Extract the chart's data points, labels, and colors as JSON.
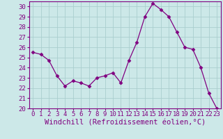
{
  "x": [
    0,
    1,
    2,
    3,
    4,
    5,
    6,
    7,
    8,
    9,
    10,
    11,
    12,
    13,
    14,
    15,
    16,
    17,
    18,
    19,
    20,
    21,
    22,
    23
  ],
  "y": [
    25.5,
    25.3,
    24.7,
    23.2,
    22.2,
    22.7,
    22.5,
    22.2,
    23.0,
    23.2,
    23.5,
    22.5,
    24.7,
    26.5,
    29.0,
    30.3,
    29.7,
    29.0,
    27.5,
    26.0,
    25.8,
    24.0,
    21.5,
    20.0
  ],
  "line_color": "#800080",
  "marker": "D",
  "marker_size": 2.5,
  "bg_color": "#cce8e8",
  "grid_color": "#aacece",
  "xlabel": "Windchill (Refroidissement éolien,°C)",
  "ylim": [
    20,
    30.5
  ],
  "xlim": [
    -0.5,
    23.5
  ],
  "yticks": [
    20,
    21,
    22,
    23,
    24,
    25,
    26,
    27,
    28,
    29,
    30
  ],
  "xticks": [
    0,
    1,
    2,
    3,
    4,
    5,
    6,
    7,
    8,
    9,
    10,
    11,
    12,
    13,
    14,
    15,
    16,
    17,
    18,
    19,
    20,
    21,
    22,
    23
  ],
  "tick_color": "#800080",
  "xlabel_color": "#800080",
  "xlabel_fontsize": 7.5,
  "tick_fontsize": 6.5,
  "spine_color": "#800080"
}
